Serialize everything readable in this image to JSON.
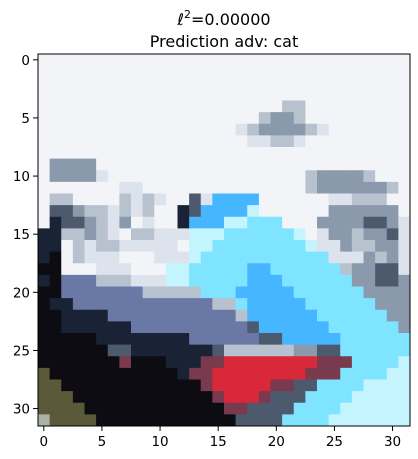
{
  "chart_data": {
    "type": "heatmap",
    "title_symbol": "ℓ",
    "title_superscript": "2",
    "title_value": "=0.00000",
    "subtitle": "Prediction adv: cat",
    "x_ticks": [
      0,
      5,
      10,
      15,
      20,
      25,
      30
    ],
    "y_ticks": [
      0,
      5,
      10,
      15,
      20,
      25,
      30
    ],
    "xlim": [
      -0.5,
      31.5
    ],
    "ylim": [
      31.5,
      -0.5
    ],
    "grid": false,
    "image_size": [
      32,
      32
    ],
    "palette": {
      "W": "#f2f4f8",
      "L": "#dde3ec",
      "G": "#b8c2cf",
      "S": "#8a9aac",
      "D": "#4d5a6e",
      "N": "#1a2236",
      "K": "#0c0c12",
      "B": "#45b6ff",
      "C": "#7ee4ff",
      "P": "#c4f5ff",
      "V": "#6a78a6",
      "R": "#d8283a",
      "M": "#7a3a4e",
      "O": "#5a5a3a",
      "H": "#aab2a8"
    },
    "pixels": [
      "WWWWWWWWWWWWWWWWWWWWWWWWWWWWWWWW",
      "WWWWWWWWWWWWWWWWWWWWWWWWWWWWWWWW",
      "WWWWWWWWWWWWWWWWWWWWWWWWWWWWWWWW",
      "WWWWWWWWWWWWWWWWWWWWWWWWWWWWWWWW",
      "WWWWWWWWWWWWWWWWWWWWWGGWWWWWWWWW",
      "WWWWWWWWWWWWWWWWWWWGSSGWWWWWWWWW",
      "WWWWWWWWWWWWWWWWWLGSSSSGLWWWWWWW",
      "WWWWWWWWWWWWWWWWWWLLGGLWWWWWWWWW",
      "WWWWWWWWWWWWWWWWWWWWWWWWWWWWWWWW",
      "WSSSSWWWWWWWWWWWWWWWWWWWWWWWWWWW",
      "WSSSSLWWWWWWWWWWWWWWWWWGSSSSGWWW",
      "WWWWWWWLLWWWWWWWWWWWWWWGSSSSSSGW",
      "WGGWWWWGLGLWWDLBBBBWWWWWWLLGGGWW",
      "WDDSGGLGLGWWNDBBBBPWWWWWWSSSSSSW",
      "WNDDSGLSWLWWNBBBPPCCCWWWSSSSDDSL",
      "NNGGSGLWGGLLLPPPCCCCCCPWLSSGSSDL",
      "NNWGLGGLLLLLWPPCCCCCCCCPLLSGGSSL",
      "NKWGLLLWWWLLLPCCCCCCCCCCCLLLSGSL",
      "KKWWWLLLWWWPPCCCCCBBCCCCCCGSSDDL",
      "NKVVVGGGLLLPPCCCCCBBBCCCCCCSSDDS",
      "KKVVVVVVVGGGGGCCCBBBBBCCCCCCSSSS",
      "KNNVVVVVVVVVVVVGGCBBBBBCCCCCCSSS",
      "KKNNNNVVVVVVVVVVVGBBBBBBCCCCCCSS",
      "KKNNNNNNVVVVVVVVVVDBBBBBBCCCCCCS",
      "KKKKKNNNNNNNNVVVVVVDDBBBBBCCCCCC",
      "KKKKKKDDNNNNNNNDGGGGGGSSDDCCCCCC",
      "KKKKKKKMKKKNNNMMRRRRRRRRMMMCCCCP",
      "OKKKKKKKKKKKNMMRRRRRRRRMMMCCCCPP",
      "OOKKKKKKKKKKKKMRRRRRMMDDCCCCPPPP",
      "OOOKKKKKKKKKKKKMRRRMDDDCCCCPPPPP",
      "OOOOKKKKKKKKKKKKMMDDDDCCCCPPPPPP",
      "HOOOOKKKKKKKKKKKKDDDDCCCCPPPPPPP"
    ]
  }
}
